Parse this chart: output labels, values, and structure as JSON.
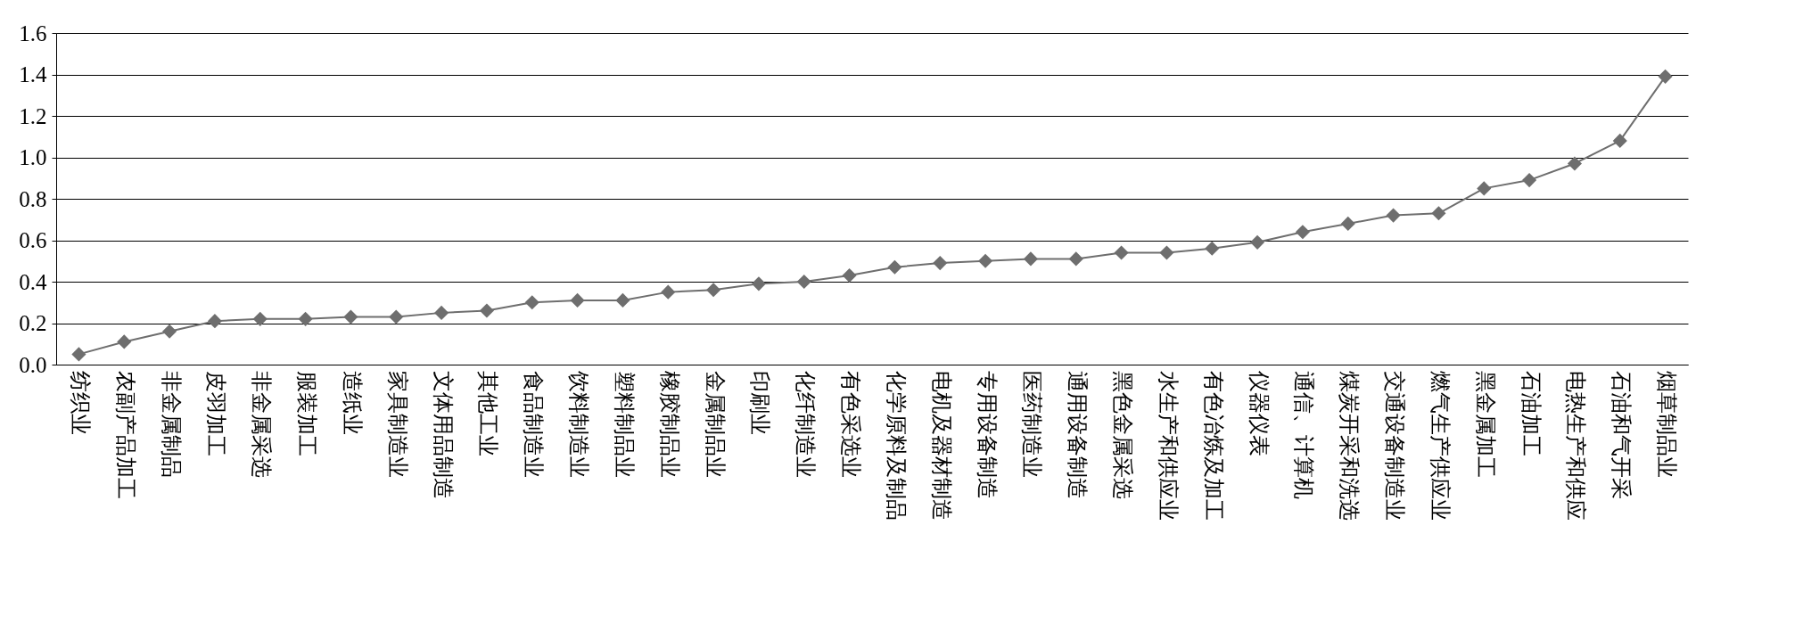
{
  "chart_data": {
    "type": "line",
    "categories": [
      "纺织业",
      "农副产品加工",
      "非金属制品",
      "皮羽加工",
      "非金属采选",
      "服装加工",
      "造纸业",
      "家具制造业",
      "文体用品制造",
      "其他工业",
      "食品制造业",
      "饮料制造业",
      "塑料制品业",
      "橡胶制品业",
      "金属制品业",
      "印刷业",
      "化纤制造业",
      "有色采选业",
      "化学原料及制品",
      "电机及器材制造",
      "专用设备制造",
      "医药制造业",
      "通用设备制造",
      "黑色金属采选",
      "水生产和供应业",
      "有色冶炼及加工",
      "仪器仪表",
      "通信、计算机",
      "煤炭开采和洗选",
      "交通设备制造业",
      "燃气生产供应业",
      "黑金属加工",
      "石油加工",
      "电热生产和供应",
      "石油和气开采",
      "烟草制品业"
    ],
    "series": [
      {
        "color": "#6e6e6e",
        "values": [
          0.05,
          0.11,
          0.16,
          0.21,
          0.22,
          0.22,
          0.23,
          0.23,
          0.25,
          0.26,
          0.3,
          0.31,
          0.31,
          0.35,
          0.36,
          0.39,
          0.4,
          0.43,
          0.47,
          0.49,
          0.5,
          0.51,
          0.51,
          0.54,
          0.54,
          0.56,
          0.59,
          0.64,
          0.68,
          0.72,
          0.73,
          0.85,
          0.89,
          0.97,
          1.08,
          1.39
        ]
      }
    ],
    "ylim": [
      0,
      1.6
    ],
    "yticks": [
      {
        "value": 0,
        "label": "0.0"
      },
      {
        "value": 0.2,
        "label": "0.2"
      },
      {
        "value": 0.4,
        "label": "0.4"
      },
      {
        "value": 0.6,
        "label": "0.6"
      },
      {
        "value": 0.8,
        "label": "0.8"
      },
      {
        "value": 1,
        "label": "1.0"
      },
      {
        "value": 1.2,
        "label": "1.2"
      },
      {
        "value": 1.4,
        "label": "1.4"
      },
      {
        "value": 1.6,
        "label": "1.6"
      }
    ],
    "grid": "y",
    "marker": "diamond",
    "legend": false
  }
}
